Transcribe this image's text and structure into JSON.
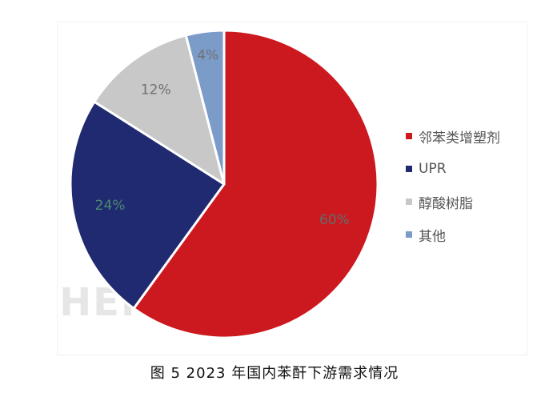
{
  "caption": "图 5  2023 年国内苯酐下游需求情况",
  "chart_data": {
    "type": "pie",
    "title": "",
    "slices": [
      {
        "name": "邻苯类增塑剂",
        "value": 60,
        "label": "60%",
        "color": "#cc1920",
        "label_color": "#5e6e6a"
      },
      {
        "name": "UPR",
        "value": 24,
        "label": "24%",
        "color": "#1f2a70",
        "label_color": "#4e8a70"
      },
      {
        "name": "醇酸树脂",
        "value": 12,
        "label": "12%",
        "color": "#c8c8c8",
        "label_color": "#707070"
      },
      {
        "name": "其他",
        "value": 4,
        "label": "4%",
        "color": "#7b9cc8",
        "label_color": "#707070"
      }
    ],
    "start_angle_deg": 0,
    "direction": "clockwise",
    "legend_position": "right"
  }
}
